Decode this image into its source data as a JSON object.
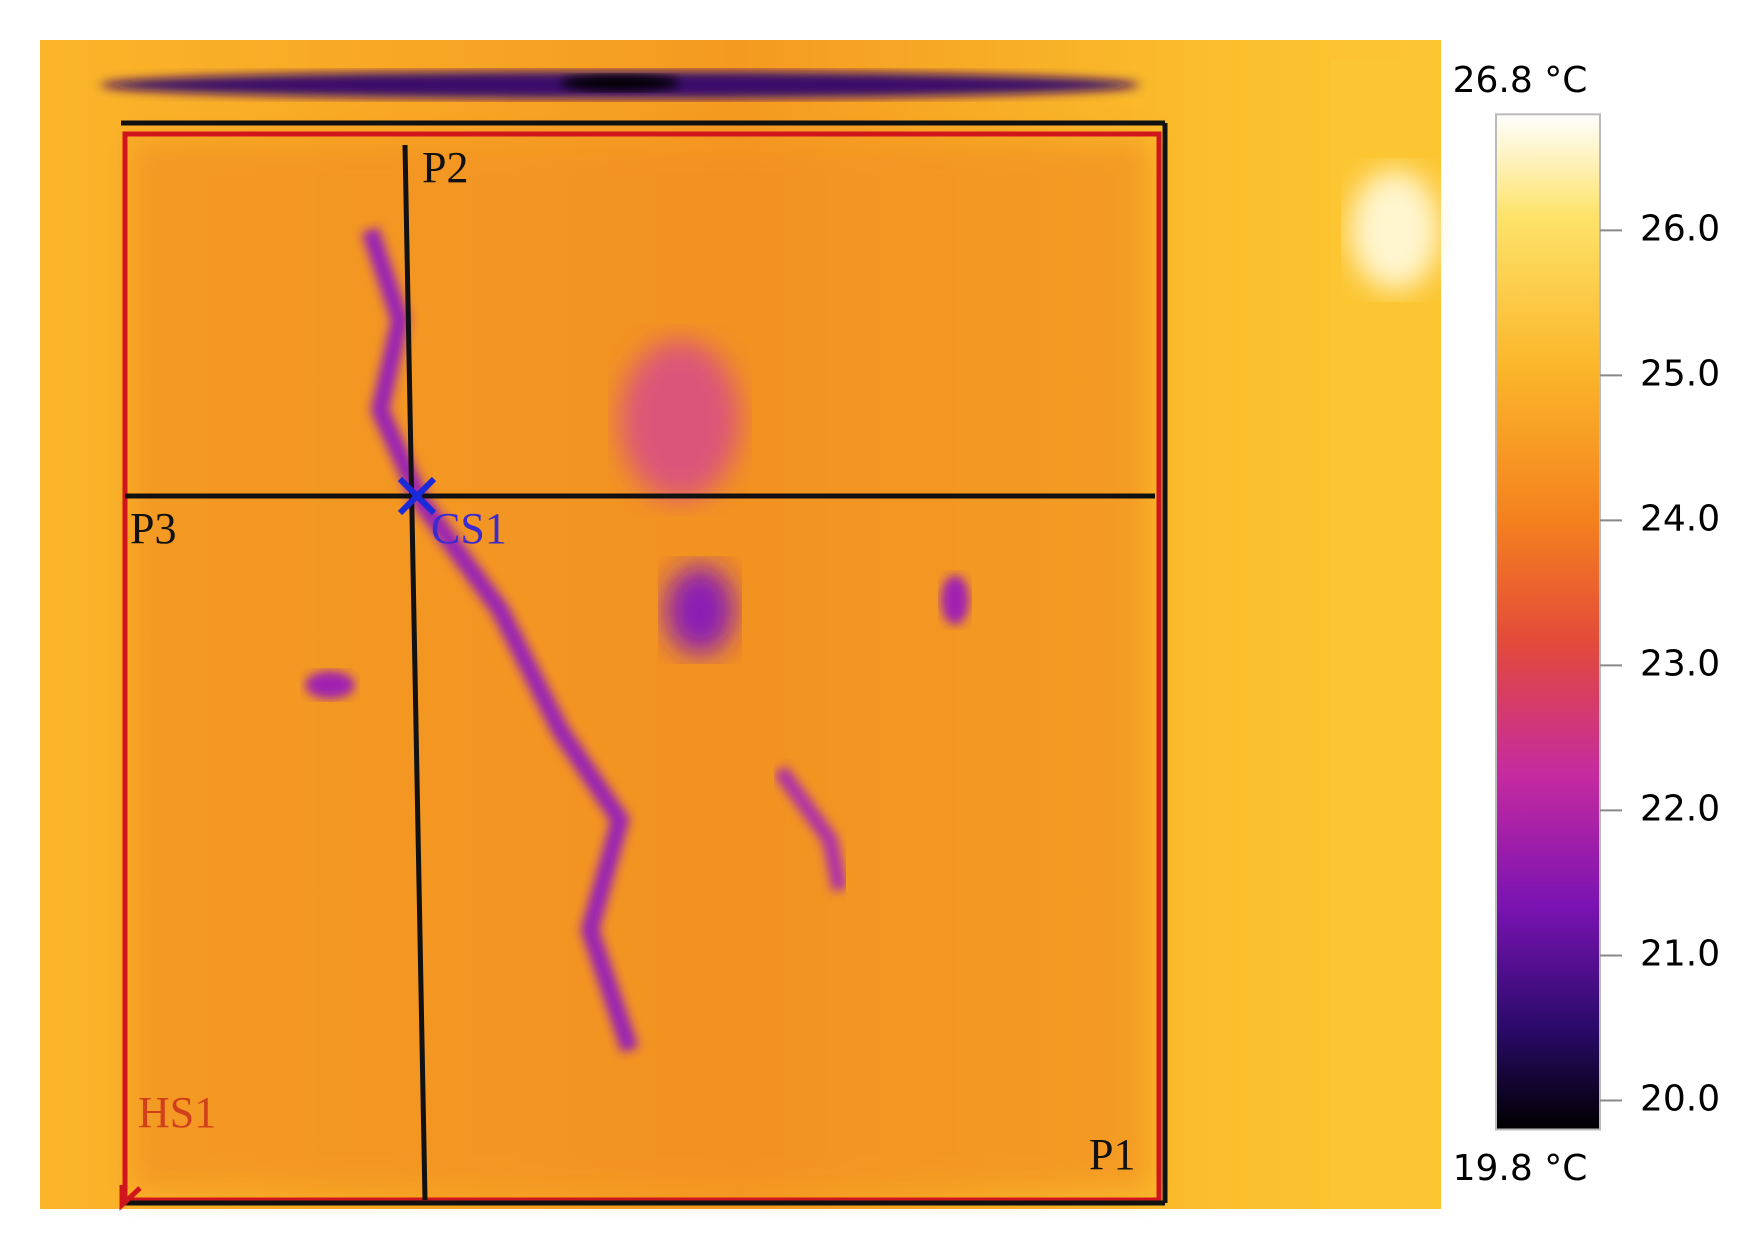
{
  "image": {
    "labels": {
      "p1": "P1",
      "p2": "P2",
      "p3": "P3",
      "cs1": "CS1",
      "hs1": "HS1"
    }
  },
  "colorbar": {
    "range": [
      {
        "value": 19.8,
        "label": "19.8 °C"
      },
      {
        "value": 26.8,
        "label": "26.8 °C"
      }
    ],
    "ticks": [
      {
        "value": 20,
        "label": "20.0"
      },
      {
        "value": 21,
        "label": "21.0"
      },
      {
        "value": 22,
        "label": "22.0"
      },
      {
        "value": 23,
        "label": "23.0"
      },
      {
        "value": 24,
        "label": "24.0"
      },
      {
        "value": 25,
        "label": "25.0"
      },
      {
        "value": 26,
        "label": "26.0"
      }
    ]
  }
}
